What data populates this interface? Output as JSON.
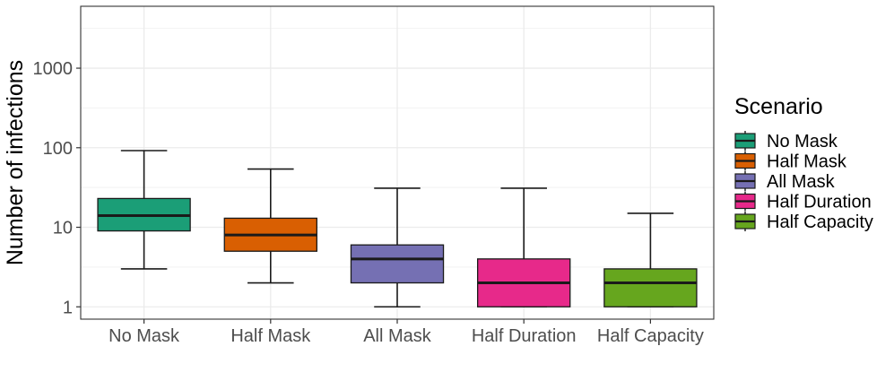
{
  "chart_data": {
    "type": "boxplot",
    "title": "",
    "xlabel": "",
    "ylabel": "Number of infections",
    "yscale": "log10",
    "ylim": [
      0.7,
      6000
    ],
    "y_ticks": [
      1,
      10,
      100,
      1000
    ],
    "y_tick_labels": [
      "1",
      "10",
      "100",
      "1000"
    ],
    "grid": true,
    "legend": {
      "title": "Scenario",
      "position": "right"
    },
    "categories": [
      "No Mask",
      "Half Mask",
      "All Mask",
      "Half Duration",
      "Half Capacity"
    ],
    "series": [
      {
        "name": "No Mask",
        "color": "#1B9E77",
        "whisker_low": 3,
        "q1": 9,
        "median": 14,
        "q3": 23,
        "whisker_high": 92
      },
      {
        "name": "Half Mask",
        "color": "#D95F02",
        "whisker_low": 2,
        "q1": 5,
        "median": 8,
        "q3": 13,
        "whisker_high": 54
      },
      {
        "name": "All Mask",
        "color": "#7570B3",
        "whisker_low": 1,
        "q1": 2,
        "median": 4,
        "q3": 6,
        "whisker_high": 31
      },
      {
        "name": "Half Duration",
        "color": "#E7298A",
        "whisker_low": 1,
        "q1": 1,
        "median": 2,
        "q3": 4,
        "whisker_high": 31
      },
      {
        "name": "Half Capacity",
        "color": "#66A61E",
        "whisker_low": 1,
        "q1": 1,
        "median": 2,
        "q3": 3,
        "whisker_high": 15
      }
    ]
  }
}
